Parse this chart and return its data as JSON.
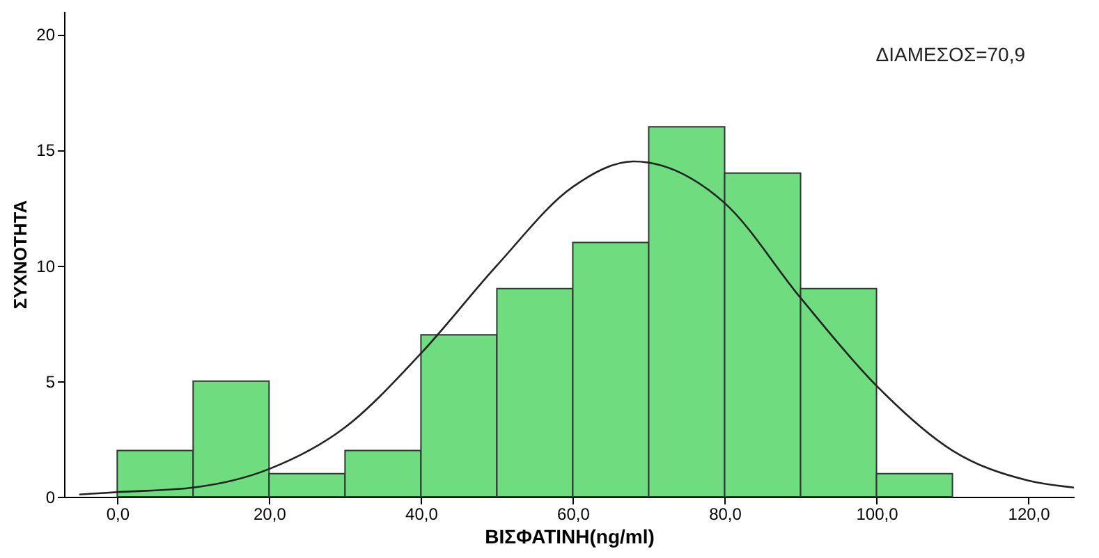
{
  "chart_data": {
    "type": "histogram",
    "xlabel": "ΒΙΣΦΑΤΙΝΗ(ng/ml)",
    "ylabel": "ΣΥΧΝΟΤΗΤΑ",
    "bins": [
      0,
      10,
      20,
      30,
      40,
      50,
      60,
      70,
      80,
      90,
      100,
      110
    ],
    "values": [
      2,
      5,
      1,
      2,
      7,
      9,
      11,
      16,
      14,
      9,
      1
    ],
    "color": "#6fdc80",
    "series": [
      {
        "type": "line",
        "color": "#222222",
        "x": [
          -5,
          0,
          10,
          20,
          30,
          40,
          50,
          60,
          68,
          80,
          90,
          100,
          110,
          120,
          126
        ],
        "values": [
          0.1,
          0.2,
          0.4,
          1.2,
          3.0,
          6.2,
          10.0,
          13.4,
          14.5,
          12.7,
          8.6,
          4.8,
          2.0,
          0.7,
          0.4
        ]
      }
    ],
    "xlim": [
      -7,
      126
    ],
    "ylim": [
      0,
      21
    ],
    "xticks": [
      {
        "value": 0,
        "label": "0,0"
      },
      {
        "value": 20,
        "label": "20,0"
      },
      {
        "value": 40,
        "label": "40,0"
      },
      {
        "value": 60,
        "label": "60,0"
      },
      {
        "value": 80,
        "label": "80,0"
      },
      {
        "value": 100,
        "label": "100,0"
      },
      {
        "value": 120,
        "label": "120,0"
      }
    ],
    "yticks": [
      0,
      5,
      10,
      15,
      20
    ],
    "annotations": [
      "ΔΙΑΜΕΣΟΣ=70,9"
    ],
    "grid": false
  }
}
